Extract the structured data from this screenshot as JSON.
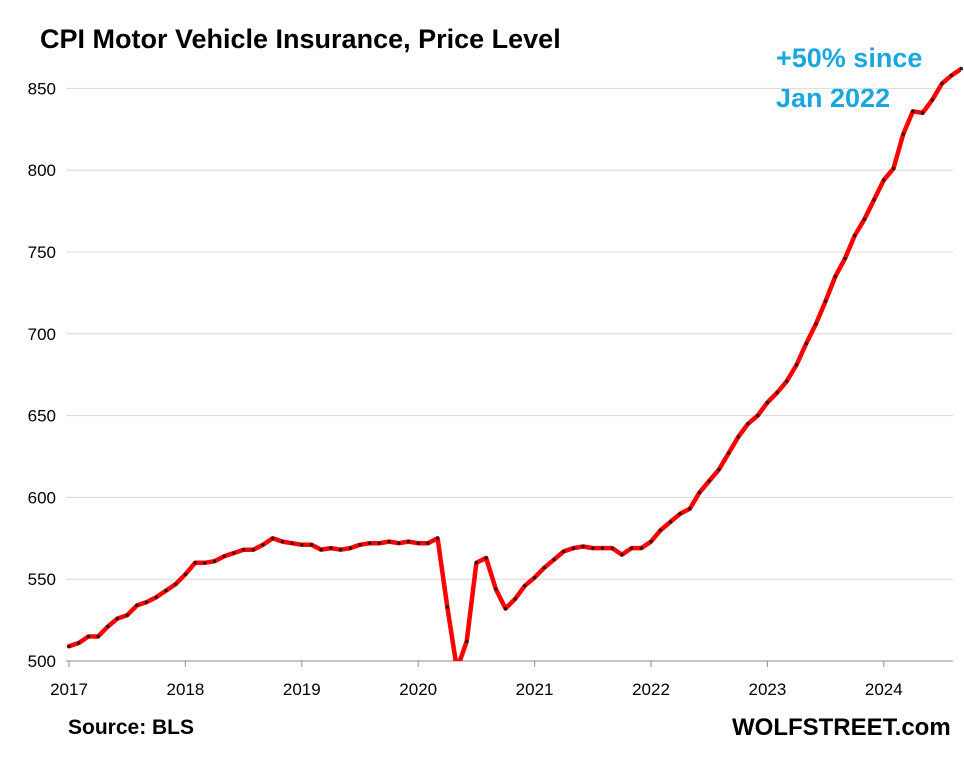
{
  "chart_data": {
    "type": "line",
    "title": "CPI Motor Vehicle Insurance, Price Level",
    "annotation": [
      "+50% since",
      "Jan 2022"
    ],
    "source": "Source: BLS",
    "brand": "WOLFSTREET.com",
    "xlabel": "",
    "ylabel": "",
    "ylim": [
      500,
      860
    ],
    "yticks": [
      500,
      550,
      600,
      650,
      700,
      750,
      800,
      850
    ],
    "xlim": [
      2017,
      2024.67
    ],
    "xticks": [
      "2017",
      "2018",
      "2019",
      "2020",
      "2021",
      "2022",
      "2023",
      "2024"
    ],
    "grid": "horizontal",
    "line_color": "#ff0000",
    "marker_color": "#1a1a1a",
    "annotation_color": "#1aa7e0",
    "series": [
      {
        "x": [
          "2017-01",
          "2017-02",
          "2017-03",
          "2017-04",
          "2017-05",
          "2017-06",
          "2017-07",
          "2017-08",
          "2017-09",
          "2017-10",
          "2017-11",
          "2017-12",
          "2018-01",
          "2018-02",
          "2018-03",
          "2018-04",
          "2018-05",
          "2018-06",
          "2018-07",
          "2018-08",
          "2018-09",
          "2018-10",
          "2018-11",
          "2018-12",
          "2019-01",
          "2019-02",
          "2019-03",
          "2019-04",
          "2019-05",
          "2019-06",
          "2019-07",
          "2019-08",
          "2019-09",
          "2019-10",
          "2019-11",
          "2019-12",
          "2020-01",
          "2020-02",
          "2020-03",
          "2020-04",
          "2020-05",
          "2020-06",
          "2020-07",
          "2020-08",
          "2020-09",
          "2020-10",
          "2020-11",
          "2020-12",
          "2021-01",
          "2021-02",
          "2021-03",
          "2021-04",
          "2021-05",
          "2021-06",
          "2021-07",
          "2021-08",
          "2021-09",
          "2021-10",
          "2021-11",
          "2021-12",
          "2022-01",
          "2022-02",
          "2022-03",
          "2022-04",
          "2022-05",
          "2022-06",
          "2022-07",
          "2022-08",
          "2022-09",
          "2022-10",
          "2022-11",
          "2022-12",
          "2023-01",
          "2023-02",
          "2023-03",
          "2023-04",
          "2023-05",
          "2023-06",
          "2023-07",
          "2023-08",
          "2023-09",
          "2023-10",
          "2023-11",
          "2023-12",
          "2024-01",
          "2024-02",
          "2024-03",
          "2024-04",
          "2024-05",
          "2024-06",
          "2024-07",
          "2024-08",
          "2024-09"
        ],
        "values": [
          509,
          511,
          515,
          515,
          521,
          526,
          528,
          534,
          536,
          539,
          543,
          547,
          553,
          560,
          560,
          561,
          564,
          566,
          568,
          568,
          571,
          575,
          573,
          572,
          571,
          571,
          568,
          569,
          568,
          569,
          571,
          572,
          572,
          573,
          572,
          573,
          572,
          572,
          575,
          533,
          495,
          512,
          560,
          563,
          544,
          532,
          538,
          546,
          551,
          557,
          562,
          567,
          569,
          570,
          569,
          569,
          569,
          565,
          569,
          569,
          573,
          580,
          585,
          590,
          593,
          603,
          610,
          617,
          627,
          637,
          645,
          650,
          658,
          664,
          671,
          681,
          694,
          706,
          720,
          735,
          746,
          760,
          770,
          782,
          794,
          801,
          822,
          836,
          835,
          843,
          853,
          858,
          862
        ]
      }
    ]
  }
}
